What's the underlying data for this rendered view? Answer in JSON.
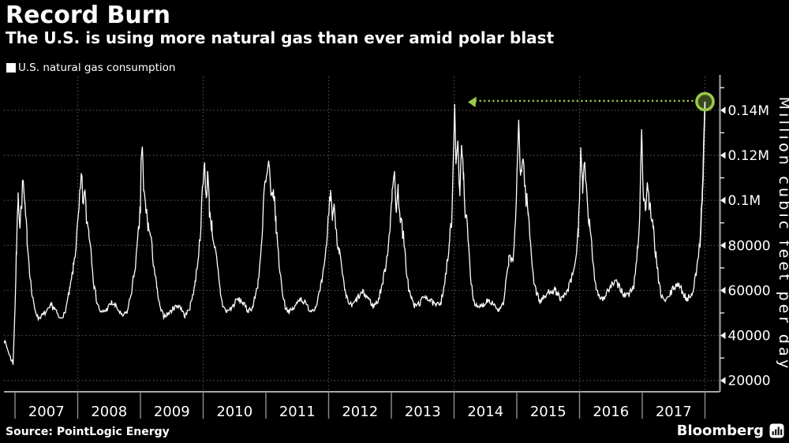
{
  "header": {
    "title": "Record Burn",
    "subtitle": "The U.S. is using more natural gas than ever amid polar blast"
  },
  "legend": {
    "label": "U.S. natural gas consumption",
    "swatch_color": "#ffffff"
  },
  "footer": {
    "source": "Source: PointLogic Energy",
    "brand": "Bloomberg",
    "brand_icon": "bar-chart-icon"
  },
  "colors": {
    "background": "#000000",
    "line": "#ffffff",
    "grid": "#4f4f4f",
    "axis": "#a9a9a9",
    "year_tick": "#8f8f8f",
    "text": "#ffffff",
    "accent_green": "#9ac94a",
    "accent_green_fill": "#3f4f1f"
  },
  "chart_data": {
    "type": "line",
    "title": "U.S. natural gas consumption",
    "xlabel": "",
    "ylabel": "Million cubic feet per day",
    "unit": "million cubic feet per day",
    "x_years": [
      "2007",
      "2008",
      "2009",
      "2010",
      "2011",
      "2012",
      "2013",
      "2014",
      "2015",
      "2016",
      "2017"
    ],
    "xlim": [
      2006.82,
      2018.23
    ],
    "ylim": [
      15000,
      155000
    ],
    "yticks": [
      {
        "value": 20000,
        "label": "20000"
      },
      {
        "value": 40000,
        "label": "40000"
      },
      {
        "value": 60000,
        "label": "60000"
      },
      {
        "value": 80000,
        "label": "80000"
      },
      {
        "value": 100000,
        "label": "0.1M"
      },
      {
        "value": 120000,
        "label": "0.12M"
      },
      {
        "value": 140000,
        "label": "0.14M"
      }
    ],
    "minor_yticks": [
      30000,
      50000,
      70000,
      90000,
      110000,
      130000,
      150000
    ],
    "grid": {
      "horizontal": "dotted",
      "vertical": "dotted-even-years"
    },
    "legend_position": "top-left",
    "annotation": {
      "type": "record-callout",
      "description": "dotted green line at previous 2014 record level with arrow pointing to 2014 peak, green circle around new record endpoint",
      "line_value": 143800,
      "arrow_year": 2014.22,
      "marker_year": 2018.0,
      "marker_value": 143800,
      "prior_peak_year": 2014.01,
      "prior_peak_value": 142800
    },
    "noise": {
      "seed": 7,
      "step_years": 0.012,
      "base": 900,
      "slope": 0.07,
      "cap": 5200,
      "quiet_above": 118000
    },
    "series": [
      {
        "name": "U.S. natural gas consumption",
        "points": [
          [
            2006.82,
            38500
          ],
          [
            2006.88,
            34000
          ],
          [
            2006.93,
            30000
          ],
          [
            2006.97,
            27500
          ],
          [
            2007.0,
            52000
          ],
          [
            2007.02,
            74000
          ],
          [
            2007.05,
            103500
          ],
          [
            2007.08,
            89000
          ],
          [
            2007.13,
            108800
          ],
          [
            2007.16,
            95000
          ],
          [
            2007.19,
            85000
          ],
          [
            2007.23,
            70000
          ],
          [
            2007.27,
            58000
          ],
          [
            2007.31,
            52500
          ],
          [
            2007.37,
            47500
          ],
          [
            2007.46,
            49500
          ],
          [
            2007.54,
            51500
          ],
          [
            2007.58,
            53500
          ],
          [
            2007.63,
            52000
          ],
          [
            2007.71,
            47500
          ],
          [
            2007.79,
            49500
          ],
          [
            2007.87,
            59500
          ],
          [
            2007.93,
            70000
          ],
          [
            2007.97,
            79000
          ],
          [
            2008.02,
            95000
          ],
          [
            2008.06,
            111200
          ],
          [
            2008.08,
            99000
          ],
          [
            2008.11,
            104000
          ],
          [
            2008.14,
            92000
          ],
          [
            2008.18,
            86000
          ],
          [
            2008.22,
            76000
          ],
          [
            2008.26,
            62000
          ],
          [
            2008.31,
            54500
          ],
          [
            2008.37,
            50000
          ],
          [
            2008.46,
            51500
          ],
          [
            2008.54,
            54500
          ],
          [
            2008.62,
            52500
          ],
          [
            2008.71,
            48500
          ],
          [
            2008.79,
            50500
          ],
          [
            2008.87,
            61500
          ],
          [
            2008.94,
            76000
          ],
          [
            2009.0,
            96000
          ],
          [
            2009.01,
            118000
          ],
          [
            2009.03,
            123900
          ],
          [
            2009.05,
            104000
          ],
          [
            2009.08,
            98000
          ],
          [
            2009.12,
            89000
          ],
          [
            2009.16,
            84000
          ],
          [
            2009.21,
            72000
          ],
          [
            2009.26,
            61000
          ],
          [
            2009.31,
            52500
          ],
          [
            2009.37,
            48500
          ],
          [
            2009.46,
            50000
          ],
          [
            2009.54,
            52500
          ],
          [
            2009.62,
            53500
          ],
          [
            2009.71,
            48500
          ],
          [
            2009.79,
            52500
          ],
          [
            2009.87,
            63000
          ],
          [
            2009.94,
            80000
          ],
          [
            2010.02,
            116500
          ],
          [
            2010.05,
            101000
          ],
          [
            2010.07,
            113000
          ],
          [
            2010.1,
            96000
          ],
          [
            2010.14,
            88000
          ],
          [
            2010.18,
            80000
          ],
          [
            2010.22,
            72000
          ],
          [
            2010.27,
            60000
          ],
          [
            2010.31,
            53500
          ],
          [
            2010.37,
            50500
          ],
          [
            2010.46,
            52500
          ],
          [
            2010.54,
            56000
          ],
          [
            2010.62,
            55000
          ],
          [
            2010.71,
            51000
          ],
          [
            2010.79,
            52500
          ],
          [
            2010.87,
            62500
          ],
          [
            2010.94,
            82000
          ],
          [
            2010.97,
            104000
          ],
          [
            2011.0,
            108000
          ],
          [
            2011.05,
            115800
          ],
          [
            2011.08,
            99000
          ],
          [
            2011.12,
            105000
          ],
          [
            2011.16,
            90000
          ],
          [
            2011.21,
            72000
          ],
          [
            2011.26,
            60000
          ],
          [
            2011.31,
            52500
          ],
          [
            2011.37,
            50500
          ],
          [
            2011.46,
            52500
          ],
          [
            2011.54,
            56800
          ],
          [
            2011.62,
            54500
          ],
          [
            2011.71,
            51000
          ],
          [
            2011.79,
            52500
          ],
          [
            2011.87,
            60500
          ],
          [
            2011.94,
            71500
          ],
          [
            2012.03,
            104600
          ],
          [
            2012.06,
            93000
          ],
          [
            2012.1,
            96000
          ],
          [
            2012.13,
            84000
          ],
          [
            2012.17,
            78000
          ],
          [
            2012.21,
            69000
          ],
          [
            2012.26,
            59000
          ],
          [
            2012.31,
            55000
          ],
          [
            2012.37,
            53000
          ],
          [
            2012.46,
            56500
          ],
          [
            2012.54,
            59000
          ],
          [
            2012.62,
            57000
          ],
          [
            2012.71,
            53000
          ],
          [
            2012.79,
            55500
          ],
          [
            2012.87,
            64500
          ],
          [
            2012.94,
            77000
          ],
          [
            2012.98,
            90000
          ],
          [
            2013.01,
            100000
          ],
          [
            2013.05,
            113000
          ],
          [
            2013.08,
            96000
          ],
          [
            2013.11,
            104000
          ],
          [
            2013.15,
            91500
          ],
          [
            2013.19,
            84000
          ],
          [
            2013.23,
            72000
          ],
          [
            2013.28,
            60000
          ],
          [
            2013.32,
            56500
          ],
          [
            2013.37,
            53000
          ],
          [
            2013.46,
            54500
          ],
          [
            2013.54,
            57900
          ],
          [
            2013.62,
            55500
          ],
          [
            2013.71,
            53000
          ],
          [
            2013.79,
            55000
          ],
          [
            2013.87,
            66500
          ],
          [
            2013.93,
            82000
          ],
          [
            2013.97,
            94500
          ],
          [
            2014.01,
            142800
          ],
          [
            2014.03,
            116000
          ],
          [
            2014.06,
            126500
          ],
          [
            2014.09,
            104000
          ],
          [
            2014.12,
            124600
          ],
          [
            2014.15,
            109000
          ],
          [
            2014.18,
            96000
          ],
          [
            2014.22,
            84000
          ],
          [
            2014.26,
            67000
          ],
          [
            2014.31,
            56000
          ],
          [
            2014.37,
            52000
          ],
          [
            2014.46,
            53500
          ],
          [
            2014.54,
            56000
          ],
          [
            2014.62,
            54500
          ],
          [
            2014.71,
            51000
          ],
          [
            2014.79,
            54000
          ],
          [
            2014.87,
            73500
          ],
          [
            2014.94,
            74000
          ],
          [
            2014.98,
            88000
          ],
          [
            2015.03,
            135800
          ],
          [
            2015.06,
            111000
          ],
          [
            2015.1,
            118500
          ],
          [
            2015.14,
            103000
          ],
          [
            2015.18,
            95000
          ],
          [
            2015.22,
            80000
          ],
          [
            2015.27,
            65000
          ],
          [
            2015.31,
            59500
          ],
          [
            2015.37,
            55000
          ],
          [
            2015.46,
            57500
          ],
          [
            2015.54,
            60400
          ],
          [
            2015.62,
            59600
          ],
          [
            2015.71,
            56000
          ],
          [
            2015.79,
            58500
          ],
          [
            2015.87,
            64500
          ],
          [
            2015.94,
            73500
          ],
          [
            2015.98,
            86000
          ],
          [
            2016.02,
            123500
          ],
          [
            2016.05,
            103000
          ],
          [
            2016.08,
            116800
          ],
          [
            2016.12,
            99000
          ],
          [
            2016.16,
            89000
          ],
          [
            2016.21,
            74000
          ],
          [
            2016.26,
            62000
          ],
          [
            2016.31,
            58000
          ],
          [
            2016.37,
            56000
          ],
          [
            2016.46,
            60000
          ],
          [
            2016.54,
            63200
          ],
          [
            2016.62,
            62500
          ],
          [
            2016.71,
            58000
          ],
          [
            2016.79,
            58000
          ],
          [
            2016.87,
            62500
          ],
          [
            2016.93,
            80000
          ],
          [
            2016.96,
            94500
          ],
          [
            2016.99,
            131600
          ],
          [
            2017.02,
            100000
          ],
          [
            2017.05,
            96000
          ],
          [
            2017.08,
            108000
          ],
          [
            2017.11,
            99000
          ],
          [
            2017.14,
            92000
          ],
          [
            2017.18,
            86000
          ],
          [
            2017.22,
            75000
          ],
          [
            2017.27,
            62000
          ],
          [
            2017.31,
            57500
          ],
          [
            2017.37,
            55000
          ],
          [
            2017.46,
            59000
          ],
          [
            2017.54,
            63000
          ],
          [
            2017.62,
            60500
          ],
          [
            2017.71,
            56000
          ],
          [
            2017.79,
            58500
          ],
          [
            2017.87,
            68500
          ],
          [
            2017.92,
            83000
          ],
          [
            2017.96,
            104600
          ],
          [
            2018.0,
            143800
          ]
        ]
      }
    ]
  }
}
